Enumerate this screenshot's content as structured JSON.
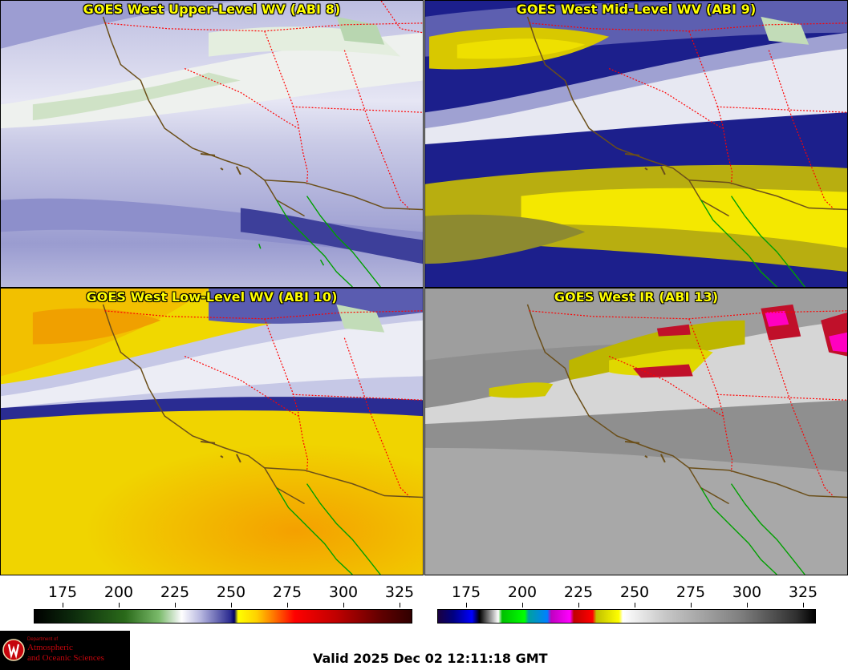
{
  "panels": [
    {
      "title": "GOES West Upper-Level WV (ABI 8)"
    },
    {
      "title": "GOES West Mid-Level WV (ABI 9)"
    },
    {
      "title": "GOES West Low-Level WV (ABI 10)"
    },
    {
      "title": "GOES West IR (ABI 13)"
    }
  ],
  "colorbars": {
    "wv": {
      "ticks": [
        "175",
        "200",
        "225",
        "250",
        "275",
        "300",
        "325"
      ]
    },
    "ir": {
      "ticks": [
        "175",
        "200",
        "225",
        "250",
        "275",
        "300",
        "325"
      ]
    }
  },
  "logo": {
    "dept": "Department of",
    "line1": "Atmospheric",
    "line2": "and Oceanic Sciences"
  },
  "valid_time": "Valid 2025 Dec 02 12:11:18 GMT",
  "colors": {
    "title_text": "#ffff00",
    "state_borders": "#ff0000",
    "coastline": "#6b4f1a",
    "mexico_coast": "#00a000"
  }
}
